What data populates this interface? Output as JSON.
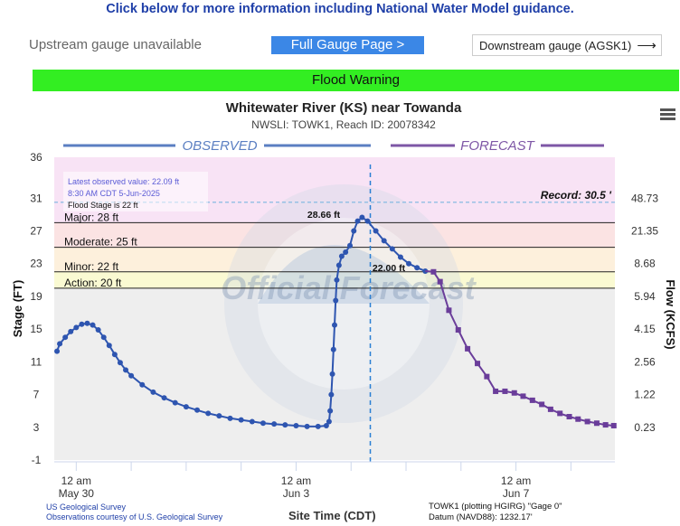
{
  "header": {
    "info_link": "Click below for more information including National Water Model guidance.",
    "upstream": "Upstream gauge unavailable",
    "full_gauge_button": "Full Gauge Page >",
    "downstream_button": "Downstream gauge (AGSK1)",
    "downstream_icon": "arrow-right-icon"
  },
  "status": {
    "label": "Flood Warning",
    "color": "#33ee22"
  },
  "chart_data": {
    "type": "line",
    "title": "Whitewater River (KS) near Towanda",
    "subtitle": "NWSLI: TOWK1, Reach ID: 20078342",
    "ylabel": "Stage (FT)",
    "y2label": "Flow (KCFS)",
    "xlabel": "Site Time (CDT)",
    "ylim": [
      -1,
      36
    ],
    "yticks": [
      -1,
      3,
      7,
      11,
      15,
      19,
      23,
      27,
      31,
      36
    ],
    "flow_ticks": [
      {
        "stage": 3,
        "label": "0.23"
      },
      {
        "stage": 7,
        "label": "1.22"
      },
      {
        "stage": 11,
        "label": "2.56"
      },
      {
        "stage": 15,
        "label": "4.15"
      },
      {
        "stage": 19,
        "label": "5.94"
      },
      {
        "stage": 23,
        "label": "8.68"
      },
      {
        "stage": 27,
        "label": "21.35"
      },
      {
        "stage": 31,
        "label": "48.73"
      }
    ],
    "xticks": [
      {
        "day": 0,
        "line1": "12 am",
        "line2": "May 30"
      },
      {
        "day": 4,
        "line1": "12 am",
        "line2": "Jun 3"
      },
      {
        "day": 8,
        "line1": "12 am",
        "line2": "Jun 7"
      }
    ],
    "xlim": [
      -0.4,
      9.8
    ],
    "section_observed": "OBSERVED",
    "section_forecast": "FORECAST",
    "current_time_day": 5.35,
    "categories": [
      {
        "name": "Major: 28 ft",
        "from": 28,
        "to": 36,
        "color": "#f8e3f5"
      },
      {
        "name": "Moderate: 25 ft",
        "from": 25,
        "to": 28,
        "color": "#fbe3e3"
      },
      {
        "name": "Minor: 22 ft",
        "from": 22,
        "to": 25,
        "color": "#fdf0dc"
      },
      {
        "name": "Action: 20 ft",
        "from": 20,
        "to": 22,
        "color": "#fafad2"
      },
      {
        "name": "",
        "from": -1,
        "to": 20,
        "color": "#eeeeee"
      }
    ],
    "record": {
      "label": "Record: 30.5 '",
      "value": 30.5
    },
    "latest_note": [
      "Latest observed value: 22.09 ft",
      "8:30 AM CDT 5-Jun-2025",
      "Flood Stage is 22 ft"
    ],
    "peak_label": "28.66 ft",
    "forecast_label": "22.00 ft",
    "watermark": "Official Forecast",
    "series": [
      {
        "name": "OBSERVED",
        "color": "#2e55b0",
        "points": [
          [
            -0.35,
            12.3
          ],
          [
            -0.3,
            13.2
          ],
          [
            -0.2,
            14.0
          ],
          [
            -0.1,
            14.7
          ],
          [
            0.0,
            15.2
          ],
          [
            0.1,
            15.6
          ],
          [
            0.2,
            15.7
          ],
          [
            0.3,
            15.5
          ],
          [
            0.4,
            14.9
          ],
          [
            0.5,
            14.0
          ],
          [
            0.6,
            13.0
          ],
          [
            0.7,
            11.9
          ],
          [
            0.8,
            10.9
          ],
          [
            0.9,
            10.0
          ],
          [
            1.0,
            9.3
          ],
          [
            1.2,
            8.2
          ],
          [
            1.4,
            7.3
          ],
          [
            1.6,
            6.6
          ],
          [
            1.8,
            6.0
          ],
          [
            2.0,
            5.5
          ],
          [
            2.2,
            5.1
          ],
          [
            2.4,
            4.7
          ],
          [
            2.6,
            4.4
          ],
          [
            2.8,
            4.1
          ],
          [
            3.0,
            3.9
          ],
          [
            3.2,
            3.7
          ],
          [
            3.4,
            3.5
          ],
          [
            3.6,
            3.4
          ],
          [
            3.8,
            3.3
          ],
          [
            4.0,
            3.2
          ],
          [
            4.2,
            3.1
          ],
          [
            4.4,
            3.1
          ],
          [
            4.55,
            3.2
          ],
          [
            4.6,
            3.7
          ],
          [
            4.62,
            5.0
          ],
          [
            4.64,
            7.0
          ],
          [
            4.66,
            9.5
          ],
          [
            4.68,
            12.5
          ],
          [
            4.7,
            15.5
          ],
          [
            4.72,
            18.5
          ],
          [
            4.74,
            21.0
          ],
          [
            4.78,
            22.8
          ],
          [
            4.83,
            23.9
          ],
          [
            4.9,
            24.4
          ],
          [
            4.98,
            25.2
          ],
          [
            5.05,
            27.0
          ],
          [
            5.12,
            28.2
          ],
          [
            5.2,
            28.66
          ],
          [
            5.3,
            28.2
          ],
          [
            5.45,
            27.0
          ],
          [
            5.6,
            25.8
          ],
          [
            5.75,
            24.8
          ],
          [
            5.9,
            23.8
          ],
          [
            6.05,
            23.0
          ],
          [
            6.2,
            22.5
          ],
          [
            6.35,
            22.09
          ]
        ]
      },
      {
        "name": "FORECAST",
        "color": "#6a3d9a",
        "points": [
          [
            6.35,
            22.09
          ],
          [
            6.5,
            22.0
          ],
          [
            6.62,
            20.8
          ],
          [
            6.78,
            17.3
          ],
          [
            6.95,
            14.9
          ],
          [
            7.12,
            12.6
          ],
          [
            7.3,
            10.8
          ],
          [
            7.47,
            9.2
          ],
          [
            7.63,
            7.4
          ],
          [
            7.8,
            7.4
          ],
          [
            7.97,
            7.2
          ],
          [
            8.13,
            6.8
          ],
          [
            8.3,
            6.3
          ],
          [
            8.47,
            5.8
          ],
          [
            8.63,
            5.2
          ],
          [
            8.8,
            4.7
          ],
          [
            8.97,
            4.3
          ],
          [
            9.13,
            4.0
          ],
          [
            9.3,
            3.7
          ],
          [
            9.47,
            3.5
          ],
          [
            9.63,
            3.3
          ],
          [
            9.78,
            3.2
          ]
        ]
      }
    ]
  },
  "footer": {
    "credit1": "US Geological Survey",
    "credit2": "Observations courtesy of U.S. Geological Survey",
    "site_info1": "TOWK1 (plotting HGIRG) \"Gage 0\"",
    "site_info2": "Datum (NAVD88): 1232.17'"
  }
}
